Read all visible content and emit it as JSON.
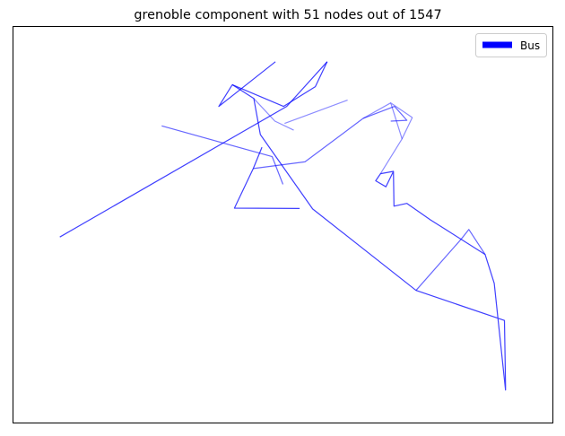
{
  "chart_data": {
    "type": "line",
    "title": "grenoble component with 51 nodes out of 1547",
    "xlabel": "",
    "ylabel": "",
    "xlim": [
      0,
      1000
    ],
    "ylim": [
      0,
      1000
    ],
    "grid": false,
    "axis_ticks": false,
    "legend": {
      "placement": "top-right",
      "entries": [
        {
          "label": "Bus",
          "color": "#0000ff"
        }
      ]
    },
    "edge_color": "#0000ff",
    "series": [
      {
        "name": "Bus",
        "opacity": 0.75,
        "points": [
          [
            86,
            531
          ],
          [
            507,
            201
          ],
          [
            582,
            88
          ]
        ]
      },
      {
        "name": "Bus",
        "opacity": 0.75,
        "points": [
          [
            486,
            88
          ],
          [
            381,
            201
          ],
          [
            406,
            146
          ]
        ]
      },
      {
        "name": "Bus",
        "opacity": 0.75,
        "points": [
          [
            406,
            146
          ],
          [
            446,
            181
          ],
          [
            458,
            272
          ],
          [
            555,
            460
          ],
          [
            747,
            666
          ],
          [
            911,
            742
          ],
          [
            913,
            906
          ],
          [
            913,
            918
          ],
          [
            892,
            648
          ],
          [
            875,
            575
          ],
          [
            774,
            488
          ],
          [
            730,
            446
          ],
          [
            706,
            453
          ],
          [
            705,
            365
          ],
          [
            681,
            371
          ],
          [
            672,
            389
          ],
          [
            691,
            404
          ],
          [
            705,
            365
          ]
        ]
      },
      {
        "name": "Bus",
        "opacity": 0.75,
        "points": [
          [
            406,
            146
          ],
          [
            501,
            201
          ],
          [
            560,
            151
          ],
          [
            582,
            88
          ]
        ]
      },
      {
        "name": "Bus",
        "opacity": 0.75,
        "points": [
          [
            531,
            459
          ],
          [
            410,
            458
          ],
          [
            445,
            358
          ],
          [
            461,
            304
          ]
        ]
      },
      {
        "name": "Bus",
        "opacity": 0.6,
        "points": [
          [
            747,
            666
          ],
          [
            831,
            536
          ],
          [
            845,
            512
          ],
          [
            875,
            575
          ]
        ]
      },
      {
        "name": "Bus",
        "opacity": 0.6,
        "points": [
          [
            445,
            358
          ],
          [
            541,
            341
          ],
          [
            649,
            231
          ],
          [
            707,
            201
          ],
          [
            730,
            236
          ],
          [
            700,
            238
          ]
        ]
      },
      {
        "name": "Bus",
        "opacity": 0.6,
        "points": [
          [
            275,
            250
          ],
          [
            480,
            328
          ],
          [
            500,
            398
          ]
        ]
      },
      {
        "name": "Bus",
        "opacity": 0.45,
        "points": [
          [
            681,
            371
          ],
          [
            721,
            283
          ],
          [
            740,
            229
          ]
        ]
      },
      {
        "name": "Bus",
        "opacity": 0.45,
        "points": [
          [
            740,
            229
          ],
          [
            700,
            192
          ],
          [
            721,
            283
          ]
        ]
      },
      {
        "name": "Bus",
        "opacity": 0.45,
        "points": [
          [
            446,
            181
          ],
          [
            485,
            238
          ],
          [
            520,
            261
          ]
        ]
      },
      {
        "name": "Bus",
        "opacity": 0.45,
        "points": [
          [
            649,
            231
          ],
          [
            700,
            192
          ]
        ]
      },
      {
        "name": "Bus",
        "opacity": 0.45,
        "points": [
          [
            503,
            244
          ],
          [
            620,
            185
          ]
        ]
      }
    ]
  }
}
